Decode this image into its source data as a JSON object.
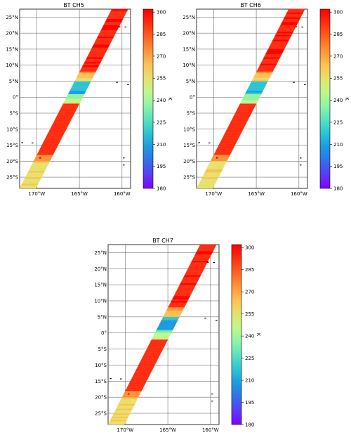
{
  "panels": [
    {
      "id": "ch5",
      "title": "BT CH5"
    },
    {
      "id": "ch6",
      "title": "BT CH6"
    },
    {
      "id": "ch7",
      "title": "BT CH7"
    }
  ],
  "lat_labels": [
    "25°N",
    "20°N",
    "15°N",
    "10°N",
    "5°N",
    "0°",
    "5°S",
    "10°S",
    "15°S",
    "20°S",
    "25°S"
  ],
  "lat_values": [
    25,
    20,
    15,
    10,
    5,
    0,
    -5,
    -10,
    -15,
    -20,
    -25
  ],
  "lon_labels": [
    "170°W",
    "165°W",
    "160°W"
  ],
  "lon_values": [
    -170,
    -165,
    -160
  ],
  "colorbar": {
    "label": "K",
    "ticks": [
      300,
      285,
      270,
      255,
      240,
      225,
      210,
      195,
      180
    ],
    "min": 180,
    "max": 302,
    "colors": [
      "#8000ff",
      "#5a3cf5",
      "#3370e8",
      "#1b9be0",
      "#2bc5d4",
      "#59e2c0",
      "#8ff5a6",
      "#bdf98b",
      "#e4e26d",
      "#ffc052",
      "#ff9239",
      "#ff6122",
      "#ff2d10",
      "#ff0000"
    ]
  },
  "map_extent": {
    "lon_min": -172,
    "lon_max": -159,
    "lat_min": -28.5,
    "lat_max": 27.5
  }
}
